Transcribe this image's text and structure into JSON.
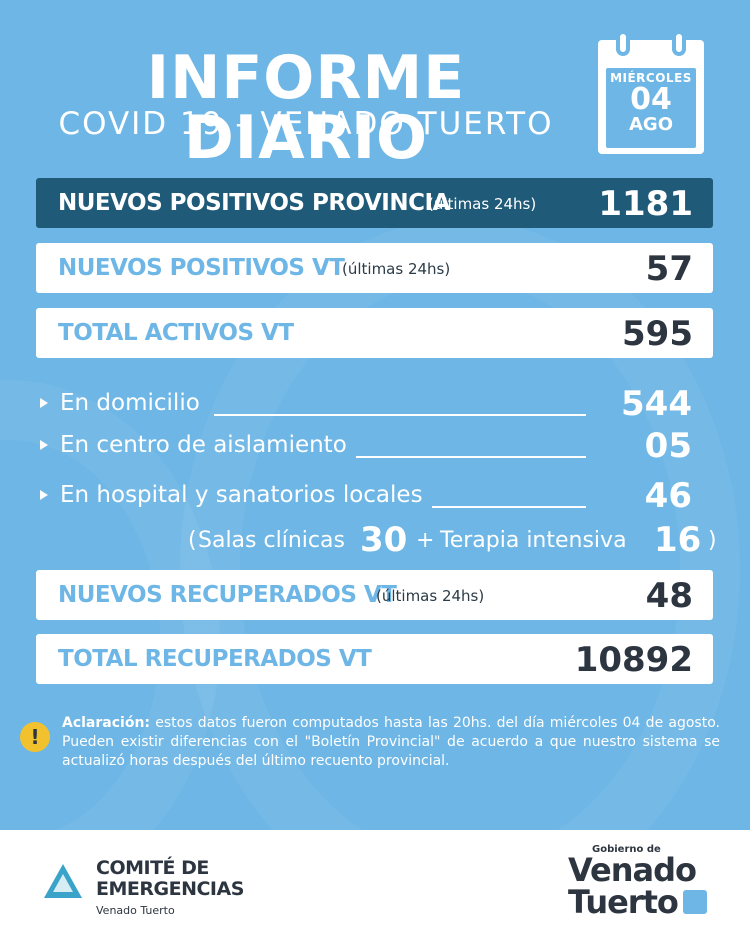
{
  "header": {
    "title": "INFORME DIARIO",
    "subtitle": "COVID 19 - VENADO TUERTO"
  },
  "calendar": {
    "weekday": "MIÉRCOLES",
    "day": "04",
    "month": "AGO"
  },
  "stats": {
    "provincia": {
      "label": "NUEVOS POSITIVOS PROVINCIA",
      "note": "(últimas 24hs)",
      "value": "1181"
    },
    "nuevos_vt": {
      "label": "NUEVOS POSITIVOS VT",
      "note": "(últimas 24hs)",
      "value": "57"
    },
    "activos_vt": {
      "label": "TOTAL ACTIVOS VT",
      "value": "595"
    },
    "domicilio": {
      "label": "En domicilio",
      "value": "544"
    },
    "aislamiento": {
      "label": "En centro de aislamiento",
      "value": "05"
    },
    "hospital": {
      "label": "En hospital y sanatorios locales",
      "value": "46"
    },
    "breakdown": {
      "open": "(",
      "salas_label": "Salas clínicas",
      "salas_value": "30",
      "plus": "+",
      "terapia_label": "Terapia intensiva",
      "terapia_value": "16",
      "close": ")"
    },
    "recuperados_vt": {
      "label": "NUEVOS RECUPERADOS VT",
      "note": "(últimas 24hs)",
      "value": "48"
    },
    "total_recuperados": {
      "label": "TOTAL RECUPERADOS VT",
      "value": "10892"
    }
  },
  "note": {
    "icon": "warning-icon",
    "title": "Aclaración:",
    "text": "estos datos fueron computados hasta las 20hs. del día miércoles 04 de agosto. Pueden existir diferencias con el \"Boletín Provincial\" de acuerdo a que nuestro sistema se actualizó horas después del último recuento provincial."
  },
  "footer": {
    "comite_line1": "COMITÉ DE",
    "comite_line2": "EMERGENCIAS",
    "comite_sub": "Venado Tuerto",
    "gobierno_small": "Gobierno de",
    "gobierno_line1": "Venado",
    "gobierno_line2": "Tuerto"
  },
  "colors": {
    "background": "#6db6e6",
    "dark_bar": "#1f5a78",
    "warning": "#f2c12e",
    "text_dark": "#2d3640"
  }
}
